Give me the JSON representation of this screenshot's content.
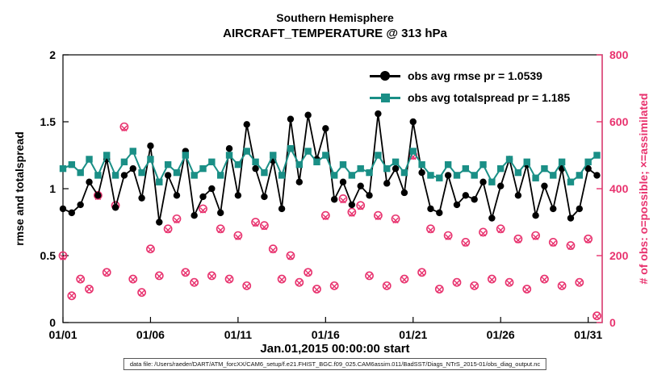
{
  "title": {
    "line1": "Southern Hemisphere",
    "line2": "AIRCRAFT_TEMPERATURE @ 313 hPa"
  },
  "axes": {
    "ylabel_left": "rmse and totalspread",
    "ylabel_right": "# of obs: o=possible; ×=assimilated",
    "xlabel": "Jan.01,2015 00:00:00 start",
    "x_tick_labels": [
      "01/01",
      "01/06",
      "01/11",
      "01/16",
      "01/21",
      "01/26",
      "01/31"
    ],
    "y_left_tick_labels": [
      "0",
      "0.5",
      "1",
      "1.5",
      "2"
    ],
    "y_right_tick_labels": [
      "0",
      "200",
      "400",
      "600",
      "800"
    ]
  },
  "colors": {
    "rmse": "#000000",
    "totalspread": "#1a8f86",
    "obs": "#e8326e"
  },
  "footer": "data file: /Users/raeder/DART/ATM_forcXX/CAM6_setup/f.e21.FHIST_BGC.f09_025.CAM6assim.011/BadSST/Diags_NTrS_2015-01/obs_diag_output.nc",
  "chart_data": {
    "type": "line",
    "title": "Southern Hemisphere AIRCRAFT_TEMPERATURE @ 313 hPa",
    "xlabel": "Jan.01,2015 00:00:00 start",
    "ylabel_left": "rmse and totalspread",
    "ylabel_right": "# of obs: o=possible; ×=assimilated",
    "xlim": [
      1,
      31.8
    ],
    "ylim_left": [
      0,
      2
    ],
    "ylim_right": [
      0,
      800
    ],
    "x_ticks": [
      1,
      6,
      11,
      16,
      21,
      26,
      31
    ],
    "y_left_ticks": [
      0,
      0.5,
      1,
      1.5,
      2
    ],
    "y_right_ticks": [
      0,
      200,
      400,
      600,
      800
    ],
    "grid": false,
    "legend_position": "upper-right-inside",
    "legend": [
      {
        "series": "rmse",
        "label": "obs avg rmse pr = 1.0539",
        "marker": "filled-circle"
      },
      {
        "series": "totalspread",
        "label": "obs avg totalspread pr = 1.185",
        "marker": "filled-square"
      }
    ],
    "averages": {
      "rmse_pr": 1.0539,
      "totalspread_pr": 1.185
    },
    "x": [
      1,
      1.5,
      2,
      2.5,
      3,
      3.5,
      4,
      4.5,
      5,
      5.5,
      6,
      6.5,
      7,
      7.5,
      8,
      8.5,
      9,
      9.5,
      10,
      10.5,
      11,
      11.5,
      12,
      12.5,
      13,
      13.5,
      14,
      14.5,
      15,
      15.5,
      16,
      16.5,
      17,
      17.5,
      18,
      18.5,
      19,
      19.5,
      20,
      20.5,
      21,
      21.5,
      22,
      22.5,
      23,
      23.5,
      24,
      24.5,
      25,
      25.5,
      26,
      26.5,
      27,
      27.5,
      28,
      28.5,
      29,
      29.5,
      30,
      30.5,
      31,
      31.5
    ],
    "rmse": [
      0.85,
      0.82,
      0.88,
      1.05,
      0.95,
      1.22,
      0.86,
      1.1,
      1.15,
      0.93,
      1.32,
      0.75,
      1.1,
      0.95,
      1.28,
      0.8,
      0.94,
      1.0,
      0.82,
      1.3,
      0.95,
      1.48,
      1.15,
      0.94,
      1.21,
      0.85,
      1.52,
      1.05,
      1.55,
      1.22,
      1.45,
      0.92,
      1.05,
      0.88,
      1.02,
      0.95,
      1.56,
      1.04,
      1.15,
      0.97,
      1.5,
      1.12,
      0.85,
      0.82,
      1.1,
      0.88,
      0.95,
      0.92,
      1.05,
      0.78,
      1.02,
      1.22,
      0.95,
      1.18,
      0.8,
      1.02,
      0.85,
      1.15,
      0.78,
      0.85,
      1.15,
      1.1
    ],
    "totalspread": [
      1.15,
      1.18,
      1.12,
      1.22,
      1.1,
      1.25,
      1.1,
      1.2,
      1.28,
      1.12,
      1.22,
      1.05,
      1.18,
      1.12,
      1.25,
      1.1,
      1.15,
      1.2,
      1.1,
      1.25,
      1.18,
      1.28,
      1.2,
      1.12,
      1.25,
      1.1,
      1.3,
      1.18,
      1.28,
      1.2,
      1.25,
      1.1,
      1.18,
      1.1,
      1.15,
      1.12,
      1.25,
      1.15,
      1.2,
      1.12,
      1.28,
      1.18,
      1.1,
      1.08,
      1.18,
      1.1,
      1.15,
      1.1,
      1.18,
      1.05,
      1.15,
      1.22,
      1.12,
      1.2,
      1.08,
      1.15,
      1.1,
      1.2,
      1.05,
      1.1,
      1.2,
      1.25
    ],
    "obs_possible": [
      200,
      80,
      130,
      100,
      380,
      150,
      350,
      585,
      130,
      90,
      220,
      140,
      280,
      310,
      150,
      120,
      340,
      140,
      280,
      130,
      260,
      110,
      300,
      290,
      220,
      130,
      200,
      120,
      150,
      100,
      320,
      110,
      370,
      330,
      350,
      140,
      320,
      110,
      310,
      130,
      500,
      150,
      280,
      100,
      260,
      120,
      240,
      110,
      270,
      130,
      280,
      120,
      250,
      100,
      260,
      130,
      240,
      110,
      230,
      120,
      250,
      20
    ],
    "obs_assimilated": [
      195,
      80,
      128,
      100,
      375,
      148,
      345,
      580,
      128,
      88,
      218,
      138,
      276,
      305,
      148,
      118,
      335,
      138,
      276,
      128,
      255,
      108,
      295,
      285,
      216,
      128,
      196,
      118,
      148,
      98,
      315,
      108,
      365,
      325,
      345,
      138,
      315,
      108,
      305,
      128,
      495,
      148,
      276,
      98,
      255,
      118,
      236,
      108,
      266,
      128,
      276,
      118,
      246,
      98,
      255,
      128,
      236,
      108,
      226,
      118,
      246,
      18
    ]
  }
}
